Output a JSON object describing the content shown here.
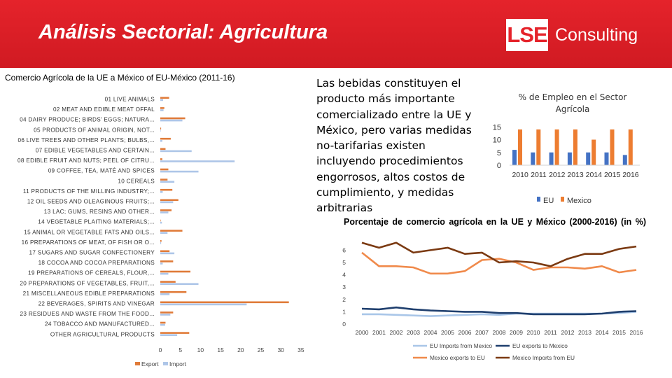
{
  "header": {
    "title": "Análisis Sectorial: Agricultura",
    "logo_box": "LSE",
    "logo_text": "Consulting",
    "colors": {
      "brand_red": "#e5232b",
      "white": "#ffffff"
    }
  },
  "narrative": "Las bebidas constituyen el producto más importante comercializado entre la UE y México, pero varias medidas no-tarifarias existen incluyendo procedimientos engorrosos, altos costos de cumplimiento, y medidas arbitrarias",
  "chart_data": [
    {
      "type": "bar",
      "orientation": "horizontal",
      "title": "Comercio Agrícola de la UE a México of EU-México (2011-16)",
      "categories": [
        "01 LIVE ANIMALS",
        "02 MEAT AND EDIBLE MEAT OFFAL",
        "04 DAIRY PRODUCE; BIRDS' EGGS; NATURA...",
        "05 PRODUCTS OF ANIMAL ORIGIN, NOT...",
        "06 LIVE TREES AND OTHER PLANTS; BULBS,...",
        "07 EDIBLE VEGETABLES AND CERTAIN...",
        "08 EDIBLE FRUIT AND NUTS; PEEL OF CITRU...",
        "09 COFFEE, TEA, MATÉ AND SPICES",
        "10 CEREALS",
        "11 PRODUCTS OF THE MILLING INDUSTRY;...",
        "12 OIL SEEDS AND OLEAGINOUS FRUITS;...",
        "13 LAC; GUMS, RESINS AND OTHER...",
        "14 VEGETABLE PLAITING MATERIALS;...",
        "15 ANIMAL OR VEGETABLE FATS AND OILS...",
        "16 PREPARATIONS OF MEAT, OF FISH OR O...",
        "17 SUGARS AND SUGAR CONFECTIONERY",
        "18 COCOA AND COCOA PREPARATIONS",
        "19 PREPARATIONS OF CEREALS, FLOUR,...",
        "20 PREPARATIONS OF VEGETABLES, FRUIT,...",
        "21 MISCELLANEOUS EDIBLE PREPARATIONS",
        "22 BEVERAGES, SPIRITS AND VINEGAR",
        "23 RESIDUES AND WASTE FROM THE FOOD...",
        "24 TOBACCO AND MANUFACTURED...",
        "OTHER AGRICULTURAL PRODUCTS"
      ],
      "series": [
        {
          "name": "Export",
          "color": "#e07b39",
          "values": [
            2.2,
            1.0,
            6.2,
            0.2,
            2.6,
            1.3,
            0.5,
            2.0,
            1.8,
            3.0,
            4.5,
            2.8,
            0.1,
            5.5,
            0.3,
            2.3,
            3.2,
            7.5,
            3.8,
            6.5,
            32.0,
            3.2,
            1.3,
            7.2
          ]
        },
        {
          "name": "Import",
          "color": "#aec6e8",
          "values": [
            0.7,
            0.8,
            5.5,
            0.1,
            0.5,
            7.8,
            18.5,
            9.5,
            3.5,
            0.6,
            3.2,
            2.0,
            0.4,
            1.8,
            0.2,
            3.5,
            0.6,
            2.0,
            9.5,
            2.3,
            21.5,
            2.5,
            1.2,
            4.2
          ]
        }
      ],
      "xlim": [
        0,
        35
      ],
      "xticks": [
        "0",
        "5",
        "10",
        "15",
        "20",
        "25",
        "30",
        "35"
      ],
      "legend_position": "bottom-left"
    },
    {
      "type": "bar",
      "title": "% de Empleo en el Sector Agrícola",
      "categories": [
        "2010",
        "2011",
        "2012",
        "2013",
        "2014",
        "2015",
        "2016"
      ],
      "series": [
        {
          "name": "EU",
          "color": "#4472c4",
          "values": [
            6,
            5,
            5,
            5,
            5,
            5,
            4
          ]
        },
        {
          "name": "Mexico",
          "color": "#ed7d31",
          "values": [
            14,
            14,
            14,
            14,
            10,
            14,
            14
          ]
        }
      ],
      "ylim": [
        0,
        15
      ],
      "yticks": [
        "15",
        "10",
        "5",
        "0"
      ],
      "legend_position": "bottom"
    },
    {
      "type": "line",
      "title": "Porcentaje de comercio agrícola en la UE y México (2000-2016) (in %)",
      "x": [
        "2000",
        "2001",
        "2002",
        "2003",
        "2004",
        "2005",
        "2006",
        "2007",
        "2008",
        "2009",
        "2010",
        "2011",
        "2012",
        "2013",
        "2014",
        "2015",
        "2016"
      ],
      "yticks": [
        "0",
        "1",
        "2",
        "3",
        "4",
        "5",
        "6"
      ],
      "ylim": [
        0,
        7
      ],
      "series": [
        {
          "name": "EU Imports from Mexico",
          "color": "#a9c6e8",
          "values": [
            0.8,
            0.8,
            0.75,
            0.7,
            0.65,
            0.7,
            0.75,
            0.8,
            0.75,
            0.85,
            0.85,
            0.85,
            0.85,
            0.85,
            0.85,
            0.9,
            1.0
          ]
        },
        {
          "name": "EU exports to Mexico",
          "color": "#1f3f6e",
          "values": [
            1.25,
            1.2,
            1.35,
            1.2,
            1.1,
            1.05,
            1.0,
            1.0,
            0.9,
            0.9,
            0.8,
            0.8,
            0.8,
            0.8,
            0.85,
            1.0,
            1.05
          ]
        },
        {
          "name": "Mexico exports to EU",
          "color": "#f08a4b",
          "values": [
            5.8,
            4.7,
            4.7,
            4.6,
            4.1,
            4.1,
            4.3,
            5.2,
            5.3,
            5.0,
            4.4,
            4.6,
            4.6,
            4.5,
            4.7,
            4.2,
            4.4
          ]
        },
        {
          "name": "Mexico Imports from EU",
          "color": "#7b3a12",
          "values": [
            6.6,
            6.2,
            6.6,
            5.8,
            6.0,
            6.2,
            5.7,
            5.8,
            5.0,
            5.1,
            5.0,
            4.7,
            5.3,
            5.7,
            5.7,
            6.1,
            6.3
          ]
        }
      ],
      "legend_position": "bottom"
    }
  ]
}
